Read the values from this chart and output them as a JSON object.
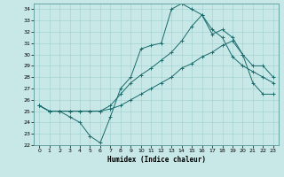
{
  "title": "",
  "xlabel": "Humidex (Indice chaleur)",
  "xlim": [
    -0.5,
    23.5
  ],
  "ylim": [
    22,
    34.5
  ],
  "yticks": [
    22,
    23,
    24,
    25,
    26,
    27,
    28,
    29,
    30,
    31,
    32,
    33,
    34
  ],
  "xticks": [
    0,
    1,
    2,
    3,
    4,
    5,
    6,
    7,
    8,
    9,
    10,
    11,
    12,
    13,
    14,
    15,
    16,
    17,
    18,
    19,
    20,
    21,
    22,
    23
  ],
  "background_color": "#c8e8e8",
  "line_color": "#1a6b6b",
  "series": [
    [
      25.5,
      25.0,
      25.0,
      24.5,
      24.0,
      22.8,
      22.2,
      24.5,
      27.0,
      28.0,
      30.5,
      30.8,
      31.0,
      34.0,
      34.5,
      34.0,
      33.5,
      32.2,
      31.5,
      29.8,
      29.0,
      28.5,
      28.0,
      27.5
    ],
    [
      25.5,
      25.0,
      25.0,
      25.0,
      25.0,
      25.0,
      25.0,
      25.5,
      26.5,
      27.5,
      28.2,
      28.8,
      29.5,
      30.2,
      31.2,
      32.5,
      33.5,
      31.8,
      32.2,
      31.5,
      30.0,
      29.0,
      29.0,
      28.0
    ],
    [
      25.5,
      25.0,
      25.0,
      25.0,
      25.0,
      25.0,
      25.0,
      25.2,
      25.5,
      26.0,
      26.5,
      27.0,
      27.5,
      28.0,
      28.8,
      29.2,
      29.8,
      30.2,
      30.8,
      31.2,
      30.0,
      27.5,
      26.5,
      26.5
    ]
  ]
}
